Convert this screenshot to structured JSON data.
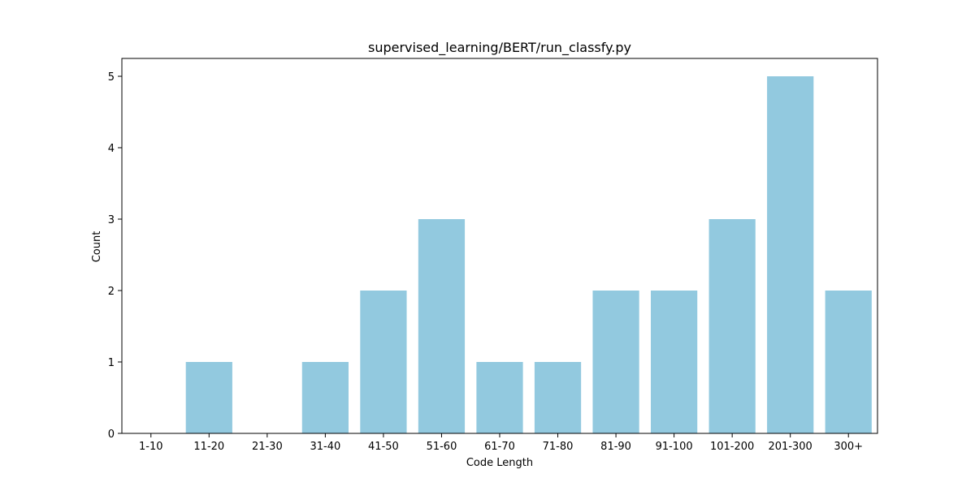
{
  "chart_data": {
    "type": "bar",
    "title": "supervised_learning/BERT/run_classfy.py",
    "xlabel": "Code Length",
    "ylabel": "Count",
    "categories": [
      "1-10",
      "11-20",
      "21-30",
      "31-40",
      "41-50",
      "51-60",
      "61-70",
      "71-80",
      "81-90",
      "91-100",
      "101-200",
      "201-300",
      "300+"
    ],
    "values": [
      0,
      1,
      0,
      1,
      2,
      3,
      1,
      1,
      2,
      2,
      3,
      5,
      2
    ],
    "yticks": [
      0,
      1,
      2,
      3,
      4,
      5
    ],
    "ylim": [
      0,
      5.25
    ],
    "bar_color": "#92c9df",
    "grid": false,
    "legend": "none"
  }
}
